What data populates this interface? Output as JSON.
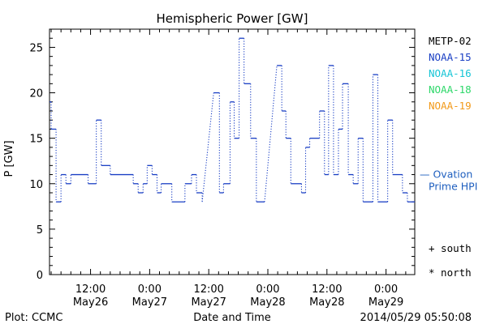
{
  "footer": {
    "plot_label": "Plot: CCMC",
    "timestamp": "2014/05/29 05:50:08"
  },
  "colors": {
    "axis": "#000000",
    "series": "#1a3fc4",
    "ovation": "#1f5fbf",
    "metop": "#000000",
    "noaa15": "#1a3fc4",
    "noaa16": "#17c5d6",
    "noaa18": "#2ed86a",
    "noaa19": "#f29a1a"
  },
  "chart_data": {
    "type": "line",
    "title": "Hemispheric Power [GW]",
    "xlabel": "Date and Time",
    "ylabel": "P [GW]",
    "ylim": [
      0,
      27
    ],
    "yticks": [
      0,
      5,
      10,
      15,
      20,
      25
    ],
    "xlim": [
      "2014-05-26T03:40",
      "2014-05-29T05:50"
    ],
    "xticks": [
      {
        "t": "2014-05-26T12:00",
        "time": "12:00",
        "date": "May26"
      },
      {
        "t": "2014-05-27T00:00",
        "time": "0:00",
        "date": "May27"
      },
      {
        "t": "2014-05-27T12:00",
        "time": "12:00",
        "date": "May27"
      },
      {
        "t": "2014-05-28T00:00",
        "time": "0:00",
        "date": "May28"
      },
      {
        "t": "2014-05-28T12:00",
        "time": "12:00",
        "date": "May28"
      },
      {
        "t": "2014-05-29T00:00",
        "time": "0:00",
        "date": "May29"
      }
    ],
    "legend": [
      {
        "name": "METP-02",
        "color": "#000000"
      },
      {
        "name": "NOAA-15",
        "color": "#1a3fc4"
      },
      {
        "name": "NOAA-16",
        "color": "#17c5d6"
      },
      {
        "name": "NOAA-18",
        "color": "#2ed86a"
      },
      {
        "name": "NOAA-19",
        "color": "#f29a1a"
      }
    ],
    "ovation_label_line1": "— Ovation",
    "ovation_label_line2": "Prime HPI",
    "ovation_value": 11,
    "marker_south": "+ south",
    "marker_north": "* north",
    "legend_placement": "right",
    "grid": false,
    "series": [
      {
        "step": "post",
        "points": [
          [
            "2014-05-26T03:40",
            19
          ],
          [
            "2014-05-26T04:00",
            16
          ],
          [
            "2014-05-26T05:00",
            8
          ],
          [
            "2014-05-26T06:00",
            11
          ],
          [
            "2014-05-26T07:00",
            10
          ],
          [
            "2014-05-26T08:00",
            11
          ],
          [
            "2014-05-26T11:30",
            10
          ],
          [
            "2014-05-26T13:10",
            17
          ],
          [
            "2014-05-26T14:10",
            12
          ],
          [
            "2014-05-26T16:00",
            11
          ],
          [
            "2014-05-26T20:40",
            10
          ],
          [
            "2014-05-26T21:40",
            9
          ],
          [
            "2014-05-26T22:40",
            10
          ],
          [
            "2014-05-26T23:30",
            12
          ],
          [
            "2014-05-27T00:30",
            11
          ],
          [
            "2014-05-27T01:30",
            9
          ],
          [
            "2014-05-27T02:20",
            10
          ],
          [
            "2014-05-27T04:30",
            8
          ],
          [
            "2014-05-27T07:10",
            10
          ],
          [
            "2014-05-27T08:30",
            11
          ],
          [
            "2014-05-27T09:30",
            9
          ],
          [
            "2014-05-27T10:40",
            8
          ],
          [
            "2014-05-27T13:00",
            20
          ],
          [
            "2014-05-27T14:10",
            9
          ],
          [
            "2014-05-27T15:00",
            10
          ],
          [
            "2014-05-27T16:20",
            19
          ],
          [
            "2014-05-27T17:10",
            15
          ],
          [
            "2014-05-27T18:10",
            26
          ],
          [
            "2014-05-27T19:10",
            21
          ],
          [
            "2014-05-27T20:30",
            15
          ],
          [
            "2014-05-27T21:40",
            8
          ],
          [
            "2014-05-27T23:20",
            8
          ],
          [
            "2014-05-28T01:50",
            23
          ],
          [
            "2014-05-28T02:50",
            18
          ],
          [
            "2014-05-28T03:40",
            15
          ],
          [
            "2014-05-28T04:40",
            10
          ],
          [
            "2014-05-28T06:50",
            9
          ],
          [
            "2014-05-28T07:40",
            14
          ],
          [
            "2014-05-28T08:30",
            15
          ],
          [
            "2014-05-28T10:30",
            18
          ],
          [
            "2014-05-28T11:30",
            11
          ],
          [
            "2014-05-28T12:20",
            23
          ],
          [
            "2014-05-28T13:20",
            11
          ],
          [
            "2014-05-28T14:20",
            16
          ],
          [
            "2014-05-28T15:10",
            21
          ],
          [
            "2014-05-28T16:20",
            11
          ],
          [
            "2014-05-28T17:20",
            10
          ],
          [
            "2014-05-28T18:20",
            15
          ],
          [
            "2014-05-28T19:20",
            8
          ],
          [
            "2014-05-28T21:20",
            22
          ],
          [
            "2014-05-28T22:20",
            8
          ],
          [
            "2014-05-29T00:20",
            17
          ],
          [
            "2014-05-29T01:20",
            11
          ],
          [
            "2014-05-29T03:20",
            9
          ],
          [
            "2014-05-29T04:20",
            8
          ],
          [
            "2014-05-29T05:50",
            8
          ]
        ]
      }
    ]
  }
}
